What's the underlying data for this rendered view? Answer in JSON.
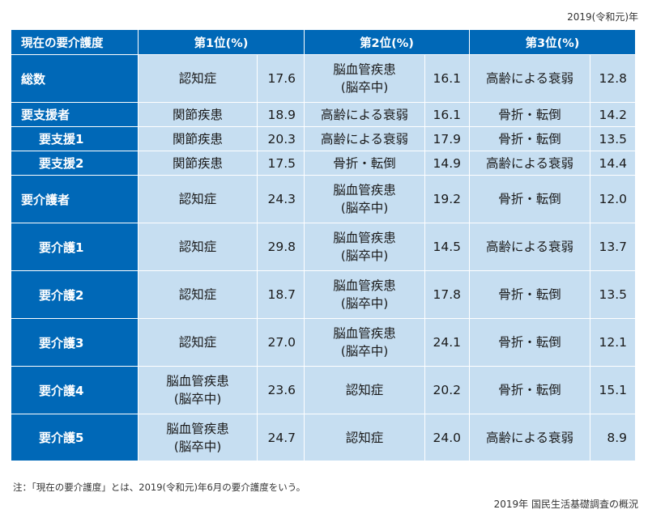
{
  "year_note": "2019(令和元)年",
  "header": {
    "corner": "現在の要介護度",
    "rank1": "第1位(%)",
    "rank2": "第2位(%)",
    "rank3": "第3位(%)"
  },
  "rows": [
    {
      "label": "総数",
      "c1": "認知症",
      "p1": "17.6",
      "c2": "脳血管疾患\n(脳卒中)",
      "p2": "16.1",
      "c3": "高齢による衰弱",
      "p3": "12.8"
    },
    {
      "label": "要支援者",
      "c1": "関節疾患",
      "p1": "18.9",
      "c2": "高齢による衰弱",
      "p2": "16.1",
      "c3": "骨折・転倒",
      "p3": "14.2"
    },
    {
      "label": "要支援1",
      "c1": "関節疾患",
      "p1": "20.3",
      "c2": "高齢による衰弱",
      "p2": "17.9",
      "c3": "骨折・転倒",
      "p3": "13.5"
    },
    {
      "label": "要支援2",
      "c1": "関節疾患",
      "p1": "17.5",
      "c2": "骨折・転倒",
      "p2": "14.9",
      "c3": "高齢による衰弱",
      "p3": "14.4"
    },
    {
      "label": "要介護者",
      "c1": "認知症",
      "p1": "24.3",
      "c2": "脳血管疾患\n(脳卒中)",
      "p2": "19.2",
      "c3": "骨折・転倒",
      "p3": "12.0"
    },
    {
      "label": "要介護1",
      "c1": "認知症",
      "p1": "29.8",
      "c2": "脳血管疾患\n(脳卒中)",
      "p2": "14.5",
      "c3": "高齢による衰弱",
      "p3": "13.7"
    },
    {
      "label": "要介護2",
      "c1": "認知症",
      "p1": "18.7",
      "c2": "脳血管疾患\n(脳卒中)",
      "p2": "17.8",
      "c3": "骨折・転倒",
      "p3": "13.5"
    },
    {
      "label": "要介護3",
      "c1": "認知症",
      "p1": "27.0",
      "c2": "脳血管疾患\n(脳卒中)",
      "p2": "24.1",
      "c3": "骨折・転倒",
      "p3": "12.1"
    },
    {
      "label": "要介護4",
      "c1": "脳血管疾患\n(脳卒中)",
      "p1": "23.6",
      "c2": "認知症",
      "p2": "20.2",
      "c3": "骨折・転倒",
      "p3": "15.1"
    },
    {
      "label": "要介護5",
      "c1": "脳血管疾患\n(脳卒中)",
      "p1": "24.7",
      "c2": "認知症",
      "p2": "24.0",
      "c3": "高齢による衰弱",
      "p3": "8.9"
    }
  ],
  "foot_note": "注：「現在の要介護度」とは、2019(令和元)年6月の要介護度をいう。",
  "source": "2019年 国民生活基礎調査の概況"
}
